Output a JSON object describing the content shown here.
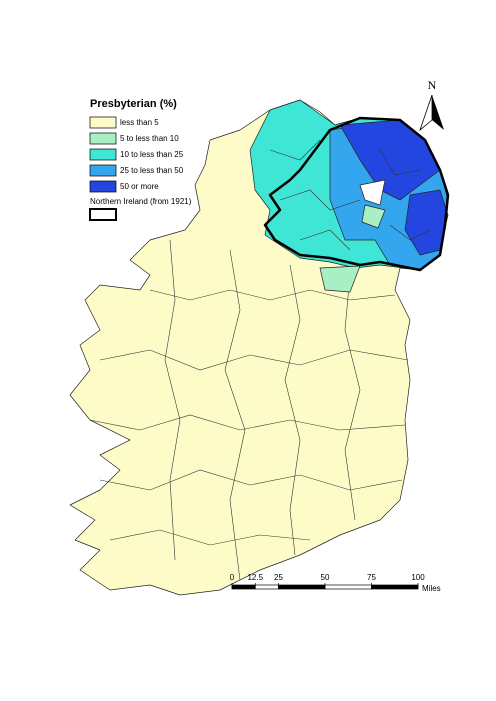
{
  "legend": {
    "title": "Presbyterian (%)",
    "items": [
      {
        "label": "less than 5",
        "color": "#fdfcc8"
      },
      {
        "label": "5 to less than 10",
        "color": "#a8f0c4"
      },
      {
        "label": "10 to less than 25",
        "color": "#3fe6d6"
      },
      {
        "label": "25 to less than 50",
        "color": "#33a6ee"
      },
      {
        "label": "50 or more",
        "color": "#2446e0"
      }
    ],
    "boundary": {
      "label": "Northern Ireland (from 1921)"
    }
  },
  "north_arrow": {
    "label": "N"
  },
  "scale_bar": {
    "ticks": [
      0,
      12.5,
      25,
      50,
      75,
      100
    ],
    "unit": "Miles"
  }
}
